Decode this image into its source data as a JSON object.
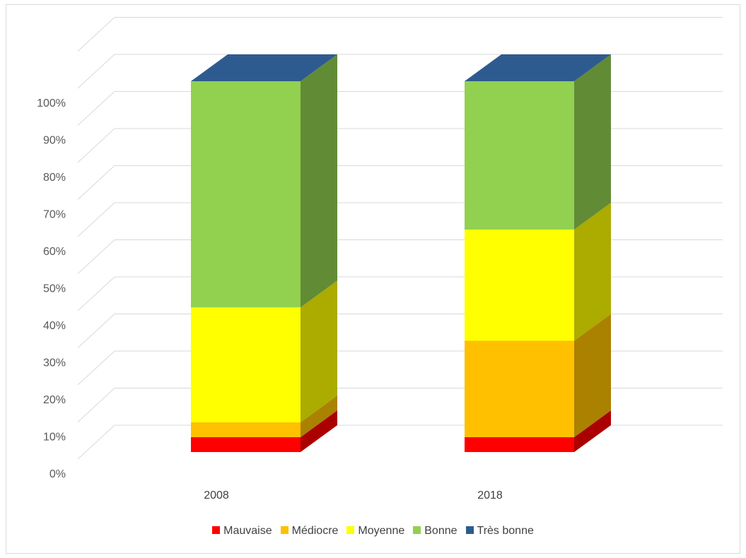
{
  "chart_data": {
    "type": "bar",
    "stacked": true,
    "three_d": true,
    "categories": [
      "2008",
      "2018"
    ],
    "series": [
      {
        "name": "Mauvaise",
        "color": "#ff0000",
        "values": [
          4,
          4
        ]
      },
      {
        "name": "Médiocre",
        "color": "#ffc000",
        "values": [
          4,
          26
        ]
      },
      {
        "name": "Moyenne",
        "color": "#ffff00",
        "values": [
          31,
          30
        ]
      },
      {
        "name": "Bonne",
        "color": "#92d050",
        "values": [
          61,
          40
        ]
      },
      {
        "name": "Très bonne",
        "color": "#2e5b8f",
        "values": [
          0,
          0
        ]
      }
    ],
    "y_ticks": [
      "0%",
      "10%",
      "20%",
      "30%",
      "40%",
      "50%",
      "60%",
      "70%",
      "80%",
      "90%",
      "100%"
    ],
    "ylim": [
      0,
      100
    ],
    "grid": true,
    "legend": "bottom",
    "title": "",
    "xlabel": "",
    "ylabel": ""
  }
}
